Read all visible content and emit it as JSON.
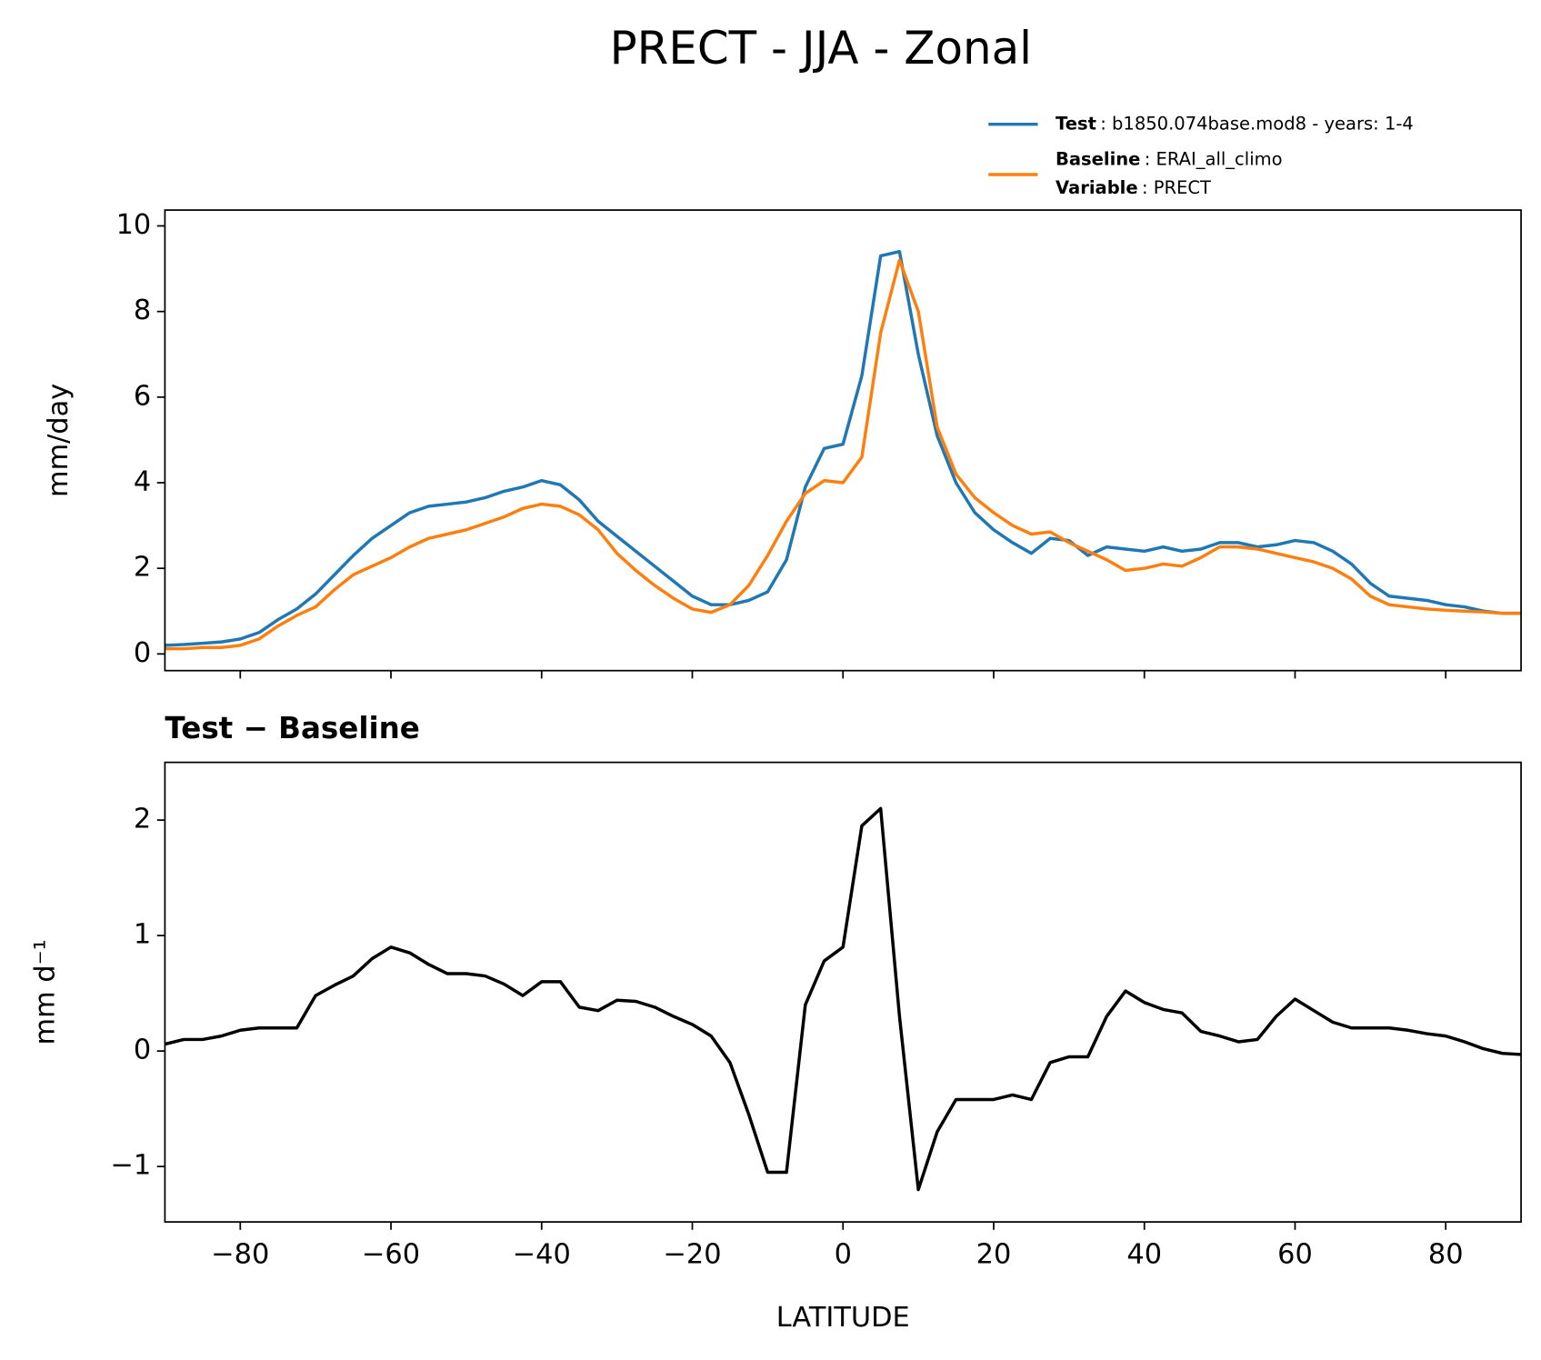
{
  "chart_data": [
    {
      "type": "line",
      "title": "PRECT - JJA - Zonal",
      "ylabel": "mm/day",
      "x": [
        -90,
        -87.5,
        -85,
        -82.5,
        -80,
        -77.5,
        -75,
        -72.5,
        -70,
        -67.5,
        -65,
        -62.5,
        -60,
        -57.5,
        -55,
        -52.5,
        -50,
        -47.5,
        -45,
        -42.5,
        -40,
        -37.5,
        -35,
        -32.5,
        -30,
        -27.5,
        -25,
        -22.5,
        -20,
        -17.5,
        -15,
        -12.5,
        -10,
        -7.5,
        -5,
        -2.5,
        0,
        2.5,
        5,
        7.5,
        10,
        12.5,
        15,
        17.5,
        20,
        22.5,
        25,
        27.5,
        30,
        32.5,
        35,
        37.5,
        40,
        42.5,
        45,
        47.5,
        50,
        52.5,
        55,
        57.5,
        60,
        62.5,
        65,
        67.5,
        70,
        72.5,
        75,
        77.5,
        80,
        82.5,
        85,
        87.5,
        90
      ],
      "series": [
        {
          "name": "Test",
          "detail": ": b1850.074base.mod8 - years: 1-4",
          "color": "#1f77b4",
          "values": [
            0.2,
            0.22,
            0.25,
            0.28,
            0.35,
            0.5,
            0.8,
            1.05,
            1.4,
            1.85,
            2.3,
            2.7,
            3.0,
            3.3,
            3.45,
            3.5,
            3.55,
            3.65,
            3.8,
            3.9,
            4.05,
            3.95,
            3.6,
            3.1,
            2.75,
            2.4,
            2.05,
            1.7,
            1.35,
            1.15,
            1.15,
            1.25,
            1.45,
            2.2,
            3.9,
            4.8,
            4.9,
            6.5,
            9.3,
            9.4,
            7.0,
            5.1,
            4.0,
            3.3,
            2.9,
            2.6,
            2.35,
            2.7,
            2.65,
            2.3,
            2.5,
            2.45,
            2.4,
            2.5,
            2.4,
            2.45,
            2.6,
            2.6,
            2.5,
            2.55,
            2.65,
            2.6,
            2.4,
            2.1,
            1.65,
            1.35,
            1.3,
            1.25,
            1.15,
            1.1,
            1.0,
            0.95,
            0.95
          ]
        },
        {
          "name": "Baseline",
          "detail": ": ERAI_all_climo",
          "color": "#ff7f0e",
          "values": [
            0.12,
            0.12,
            0.15,
            0.15,
            0.2,
            0.35,
            0.65,
            0.9,
            1.1,
            1.5,
            1.85,
            2.05,
            2.25,
            2.5,
            2.7,
            2.8,
            2.9,
            3.05,
            3.2,
            3.4,
            3.5,
            3.45,
            3.25,
            2.9,
            2.35,
            1.95,
            1.6,
            1.3,
            1.05,
            0.97,
            1.15,
            1.6,
            2.3,
            3.1,
            3.75,
            4.05,
            4.0,
            4.6,
            7.5,
            9.2,
            8.0,
            5.3,
            4.2,
            3.65,
            3.3,
            3.0,
            2.8,
            2.85,
            2.6,
            2.4,
            2.2,
            1.95,
            2.0,
            2.1,
            2.05,
            2.25,
            2.5,
            2.5,
            2.45,
            2.35,
            2.25,
            2.15,
            2.0,
            1.75,
            1.35,
            1.15,
            1.1,
            1.05,
            1.02,
            1.0,
            0.98,
            0.95,
            0.95
          ]
        }
      ],
      "legend_extra": {
        "name": "Variable",
        "detail": ": PRECT"
      },
      "xlim": [
        -90,
        90
      ],
      "xticks": [
        -80,
        -60,
        -40,
        -20,
        0,
        20,
        40,
        60,
        80
      ],
      "xtick_labels": false,
      "ylim": [
        -0.39,
        10.37
      ],
      "yticks": [
        0,
        2,
        4,
        6,
        8,
        10
      ]
    },
    {
      "type": "line",
      "title": "Test − Baseline",
      "ylabel": "mm d⁻¹",
      "xlabel": "LATITUDE",
      "x": [
        -90,
        -87.5,
        -85,
        -82.5,
        -80,
        -77.5,
        -75,
        -72.5,
        -70,
        -67.5,
        -65,
        -62.5,
        -60,
        -57.5,
        -55,
        -52.5,
        -50,
        -47.5,
        -45,
        -42.5,
        -40,
        -37.5,
        -35,
        -32.5,
        -30,
        -27.5,
        -25,
        -22.5,
        -20,
        -17.5,
        -15,
        -12.5,
        -10,
        -7.5,
        -5,
        -2.5,
        0,
        2.5,
        5,
        7.5,
        10,
        12.5,
        15,
        17.5,
        20,
        22.5,
        25,
        27.5,
        30,
        32.5,
        35,
        37.5,
        40,
        42.5,
        45,
        47.5,
        50,
        52.5,
        55,
        57.5,
        60,
        62.5,
        65,
        67.5,
        70,
        72.5,
        75,
        77.5,
        80,
        82.5,
        85,
        87.5,
        90
      ],
      "series": [
        {
          "color": "#000000",
          "values": [
            0.06,
            0.1,
            0.1,
            0.13,
            0.18,
            0.2,
            0.2,
            0.2,
            0.48,
            0.57,
            0.65,
            0.8,
            0.9,
            0.85,
            0.75,
            0.67,
            0.67,
            0.65,
            0.58,
            0.48,
            0.6,
            0.6,
            0.38,
            0.35,
            0.44,
            0.43,
            0.38,
            0.3,
            0.23,
            0.13,
            -0.1,
            -0.55,
            -1.05,
            -1.05,
            0.4,
            0.78,
            0.9,
            1.95,
            2.1,
            0.3,
            -1.2,
            -0.7,
            -0.42,
            -0.42,
            -0.42,
            -0.38,
            -0.42,
            -0.1,
            -0.05,
            -0.05,
            0.3,
            0.52,
            0.42,
            0.36,
            0.33,
            0.17,
            0.13,
            0.08,
            0.1,
            0.3,
            0.45,
            0.35,
            0.25,
            0.2,
            0.2,
            0.2,
            0.18,
            0.15,
            0.13,
            0.08,
            0.02,
            -0.02,
            -0.03
          ]
        }
      ],
      "xlim": [
        -90,
        90
      ],
      "xticks": [
        {
          "value": -80,
          "label": "−80"
        },
        {
          "value": -60,
          "label": "−60"
        },
        {
          "value": -40,
          "label": "−40"
        },
        {
          "value": -20,
          "label": "−20"
        },
        0,
        20,
        40,
        60,
        80
      ],
      "xtick_labels": true,
      "ylim": [
        -1.48,
        2.5
      ],
      "yticks": [
        {
          "value": -1,
          "label": "−1"
        },
        0,
        1,
        2
      ]
    }
  ]
}
